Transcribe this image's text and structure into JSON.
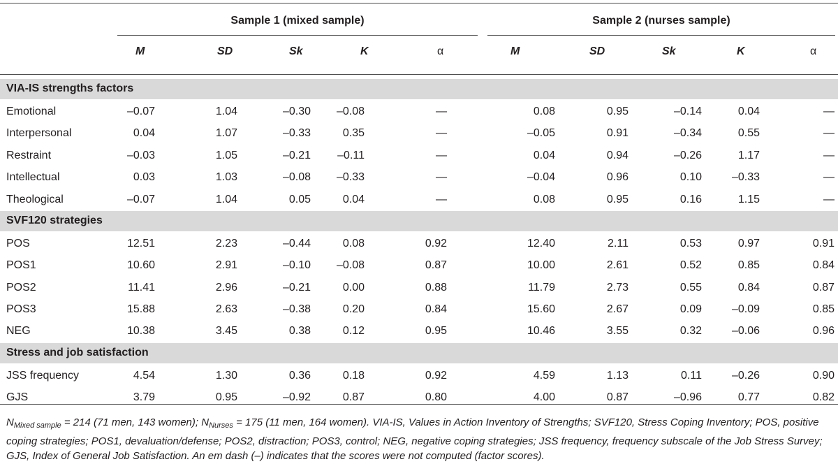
{
  "table": {
    "group_headers": [
      "Sample 1 (mixed sample)",
      "Sample 2 (nurses sample)"
    ],
    "columns": [
      "M",
      "SD",
      "Sk",
      "K",
      "α",
      "M",
      "SD",
      "Sk",
      "K",
      "α"
    ],
    "sections": [
      {
        "title": "VIA-IS strengths factors",
        "rows": [
          {
            "name": "Emotional",
            "values": [
              "–0.07",
              "1.04",
              "–0.30",
              "–0.08",
              "—",
              "0.08",
              "0.95",
              "–0.14",
              "0.04",
              "—"
            ]
          },
          {
            "name": "Interpersonal",
            "values": [
              "0.04",
              "1.07",
              "–0.33",
              "0.35",
              "—",
              "–0.05",
              "0.91",
              "–0.34",
              "0.55",
              "—"
            ]
          },
          {
            "name": "Restraint",
            "values": [
              "–0.03",
              "1.05",
              "–0.21",
              "–0.11",
              "—",
              "0.04",
              "0.94",
              "–0.26",
              "1.17",
              "—"
            ]
          },
          {
            "name": "Intellectual",
            "values": [
              "0.03",
              "1.03",
              "–0.08",
              "–0.33",
              "—",
              "–0.04",
              "0.96",
              "0.10",
              "–0.33",
              "—"
            ]
          },
          {
            "name": "Theological",
            "values": [
              "–0.07",
              "1.04",
              "0.05",
              "0.04",
              "—",
              "0.08",
              "0.95",
              "0.16",
              "1.15",
              "—"
            ]
          }
        ]
      },
      {
        "title": "SVF120 strategies",
        "rows": [
          {
            "name": "POS",
            "values": [
              "12.51",
              "2.23",
              "–0.44",
              "0.08",
              "0.92",
              "12.40",
              "2.11",
              "0.53",
              "0.97",
              "0.91"
            ]
          },
          {
            "name": "POS1",
            "values": [
              "10.60",
              "2.91",
              "–0.10",
              "–0.08",
              "0.87",
              "10.00",
              "2.61",
              "0.52",
              "0.85",
              "0.84"
            ]
          },
          {
            "name": "POS2",
            "values": [
              "11.41",
              "2.96",
              "–0.21",
              "0.00",
              "0.88",
              "11.79",
              "2.73",
              "0.55",
              "0.84",
              "0.87"
            ]
          },
          {
            "name": "POS3",
            "values": [
              "15.88",
              "2.63",
              "–0.38",
              "0.20",
              "0.84",
              "15.60",
              "2.67",
              "0.09",
              "–0.09",
              "0.85"
            ]
          },
          {
            "name": "NEG",
            "values": [
              "10.38",
              "3.45",
              "0.38",
              "0.12",
              "0.95",
              "10.46",
              "3.55",
              "0.32",
              "–0.06",
              "0.96"
            ]
          }
        ]
      },
      {
        "title": "Stress and job satisfaction",
        "rows": [
          {
            "name": "JSS frequency",
            "values": [
              "4.54",
              "1.30",
              "0.36",
              "0.18",
              "0.92",
              "4.59",
              "1.13",
              "0.11",
              "–0.26",
              "0.90"
            ]
          },
          {
            "name": "GJS",
            "values": [
              "3.79",
              "0.95",
              "–0.92",
              "0.87",
              "0.80",
              "4.00",
              "0.87",
              "–0.96",
              "0.77",
              "0.82"
            ]
          }
        ]
      }
    ]
  },
  "footnote": {
    "n_label_1": "N",
    "n_sub_1": "Mixed sample",
    "n_text_1": " = 214 (71 men, 143 women); ",
    "n_label_2": "N",
    "n_sub_2": "Nurses",
    "n_text_2": " = 175 (11 men, 164 women). VIA-IS, Values in Action Inventory of Strengths; SVF120, Stress Coping Inventory; POS, positive coping strategies; POS1, devaluation/defense; POS2, distraction; POS3, control; NEG, negative coping strategies; JSS frequency, frequency subscale of the Job Stress Survey; GJS, Index of General Job Satisfaction. An em dash (–) indicates that the scores were not computed (factor scores)."
  }
}
